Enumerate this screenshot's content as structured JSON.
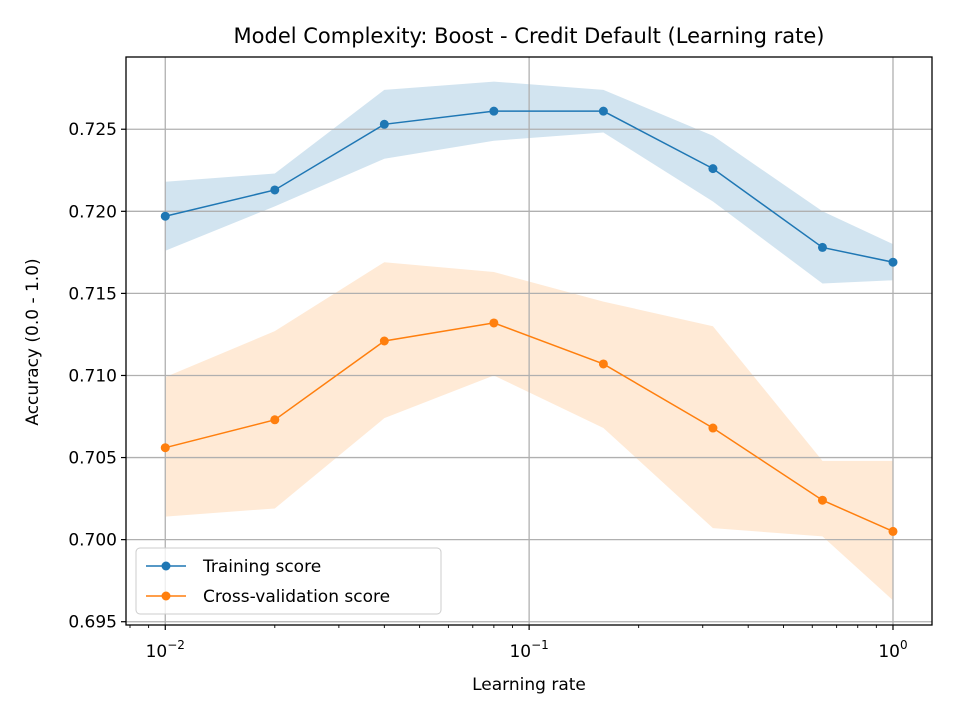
{
  "chart_data": {
    "type": "line",
    "title": "Model Complexity: Boost - Credit Default (Learning rate)",
    "xlabel": "Learning rate",
    "ylabel": "Accuracy (0.0 - 1.0)",
    "xscale": "log",
    "xlim": [
      0.0078,
      1.28
    ],
    "ylim": [
      0.6948,
      0.7294
    ],
    "grid": true,
    "legend_position": "lower-left",
    "x": [
      0.01,
      0.02,
      0.04,
      0.08,
      0.16,
      0.32,
      0.64,
      1.0
    ],
    "x_ticks": [
      {
        "value": 0.01,
        "base": "10",
        "exp": "−2"
      },
      {
        "value": 0.1,
        "base": "10",
        "exp": "−1"
      },
      {
        "value": 1,
        "base": "10",
        "exp": "0"
      }
    ],
    "y_ticks": [
      "0.695",
      "0.700",
      "0.705",
      "0.710",
      "0.715",
      "0.720",
      "0.725"
    ],
    "series": [
      {
        "name": "Training score",
        "color": "#1f77b4",
        "band_color": "#1f77b4",
        "values": [
          0.7197,
          0.7213,
          0.7253,
          0.7261,
          0.7261,
          0.7226,
          0.7178,
          0.7169
        ],
        "lower": [
          0.7176,
          0.7203,
          0.7232,
          0.7243,
          0.7248,
          0.7206,
          0.7156,
          0.7158
        ],
        "upper": [
          0.7218,
          0.7223,
          0.7274,
          0.7279,
          0.7274,
          0.7246,
          0.72,
          0.718
        ]
      },
      {
        "name": "Cross-validation score",
        "color": "#ff7f0e",
        "band_color": "#ffbb78",
        "values": [
          0.7056,
          0.7073,
          0.7121,
          0.7132,
          0.7107,
          0.7068,
          0.7024,
          0.7005
        ],
        "lower": [
          0.7014,
          0.7019,
          0.7074,
          0.71,
          0.7068,
          0.7007,
          0.7002,
          0.6963
        ],
        "upper": [
          0.7099,
          0.7127,
          0.7169,
          0.7163,
          0.7145,
          0.713,
          0.7048,
          0.7048
        ]
      }
    ]
  }
}
